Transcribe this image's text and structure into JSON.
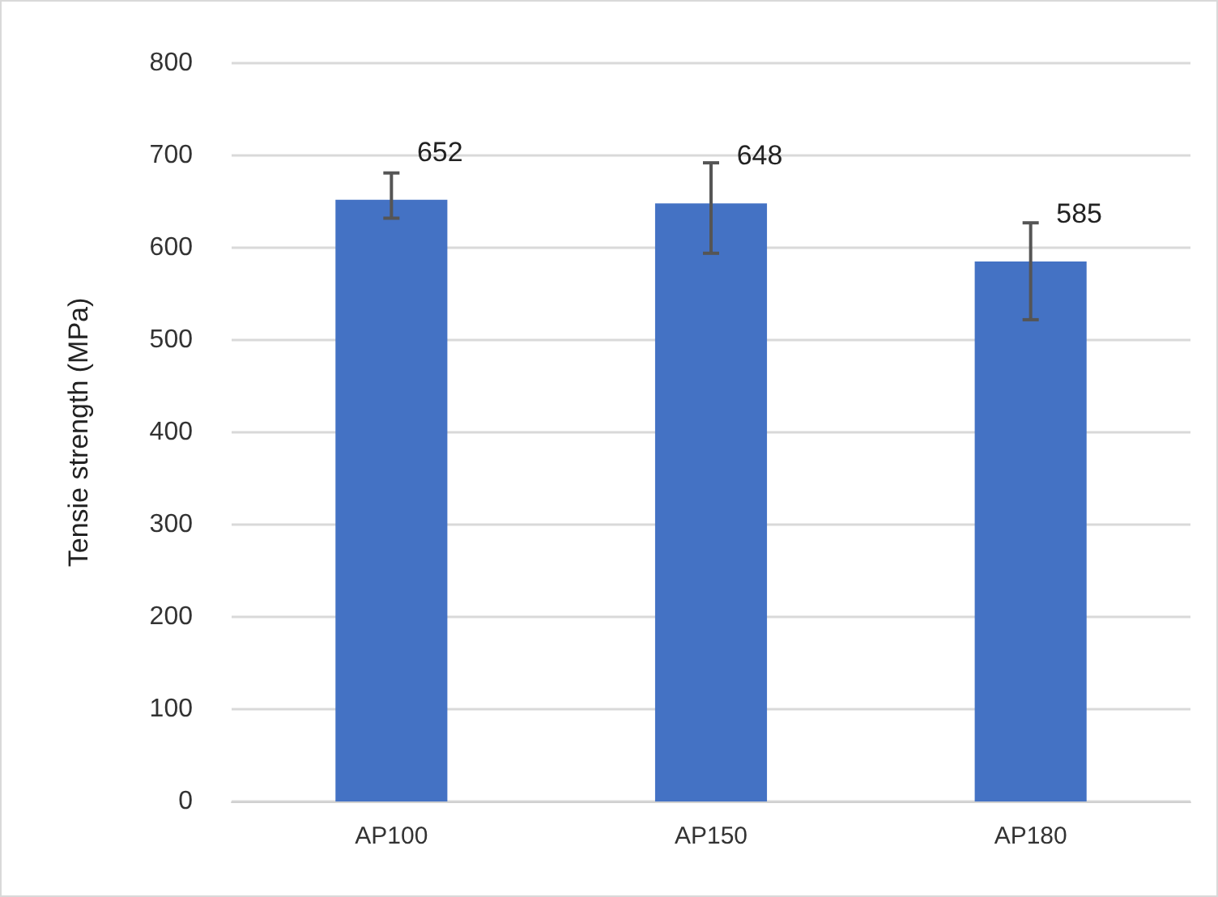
{
  "chart_data": {
    "type": "bar",
    "ylabel": "Tensie strength (MPa)",
    "categories": [
      "AP100",
      "AP150",
      "AP180"
    ],
    "values": [
      652,
      648,
      585
    ],
    "color": "#4472c4",
    "errors": [
      [
        632,
        681
      ],
      [
        594,
        692
      ],
      [
        522,
        627
      ]
    ],
    "data_labels": true,
    "ylim": [
      0,
      800
    ],
    "yticks": [
      0,
      100,
      200,
      300,
      400,
      500,
      600,
      700,
      800
    ],
    "grid": "y"
  }
}
